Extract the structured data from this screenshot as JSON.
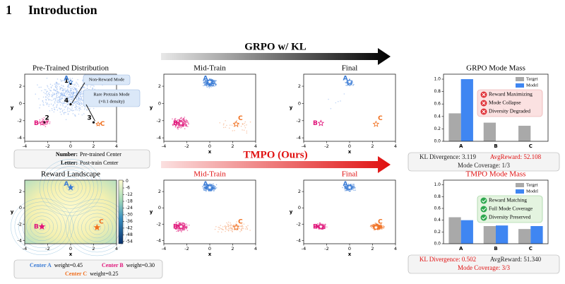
{
  "section": {
    "number": "1",
    "title": "Introduction"
  },
  "banners": {
    "grpo": "GRPO w/ KL",
    "tmpo": "TMPO (Ours)"
  },
  "modes": [
    "A",
    "B",
    "C"
  ],
  "scatter_axes": {
    "xlabel": "x",
    "ylabel": "y",
    "xlim": [
      -4,
      4
    ],
    "ylim": [
      -4.4,
      3.4
    ],
    "xticks": [
      -4,
      -2,
      0,
      2,
      4
    ],
    "yticks": [
      -4,
      -2,
      0,
      2
    ]
  },
  "pretrained": {
    "title": "Pre-Trained Distribution",
    "points": [
      "1",
      "2",
      "3",
      "4"
    ],
    "callouts": [
      "Non-Reward Mode",
      "Rare Pretrain Mode",
      "(×0.1 density)"
    ]
  },
  "legend_box": {
    "rows": [
      {
        "key": "Number:",
        "text": "Pre-trained Center"
      },
      {
        "key": "Letter:",
        "text": "Post-train Center"
      }
    ]
  },
  "reward": {
    "title": "Reward Landscape",
    "colorbar_ticks": [
      0,
      -6,
      -12,
      -18,
      -24,
      -30,
      -36,
      -42,
      -48,
      -54
    ],
    "colorbar_lim": [
      -56,
      1
    ]
  },
  "weights": [
    {
      "label": "Center A",
      "text": "weight=0.45"
    },
    {
      "label": "Center B",
      "text": "weight=0.30"
    },
    {
      "label": "Center C",
      "text": "weight=0.25"
    }
  ],
  "panel_titles": {
    "mid": "Mid-Train",
    "final": "Final"
  },
  "grpo_badges": [
    "Reward Maximizing",
    "Mode Collapse",
    "Diversity Degraded"
  ],
  "tmpo_badges": [
    "Reward Matching",
    "Full Mode Coverage",
    "Diversity Preserved"
  ],
  "grpo_stats": {
    "kl": "KL Divergence: 3.119",
    "reward": "AvgReward: 52.108",
    "coverage": "Mode Coverage: 1/3"
  },
  "tmpo_stats": {
    "kl": "KL Divergence: 0.502",
    "reward": "AvgReward: 51.340",
    "coverage": "Mode Coverage: 3/3"
  },
  "chart_data": [
    {
      "type": "bar",
      "title": "GRPO Mode Mass",
      "categories": [
        "A",
        "B",
        "C"
      ],
      "series": [
        {
          "name": "Target",
          "color": "#a9a9a9",
          "values": [
            0.45,
            0.3,
            0.25
          ]
        },
        {
          "name": "Model",
          "color": "#3f86f2",
          "values": [
            1.0,
            0.0,
            0.0
          ]
        }
      ],
      "ylim": [
        0,
        1.08
      ],
      "yticks": [
        {
          "value": 0,
          "label": "0.0"
        },
        {
          "value": 0.2,
          "label": "0.2"
        },
        {
          "value": 0.4,
          "label": "0.4"
        },
        {
          "value": 0.6,
          "label": "0.6"
        },
        {
          "value": 0.8,
          "label": "0.8"
        },
        {
          "value": 1,
          "label": "1.0"
        }
      ]
    },
    {
      "type": "bar",
      "title": "TMPO Mode Mass",
      "categories": [
        "A",
        "B",
        "C"
      ],
      "series": [
        {
          "name": "Target",
          "color": "#a9a9a9",
          "values": [
            0.45,
            0.3,
            0.25
          ]
        },
        {
          "name": "Model",
          "color": "#3f86f2",
          "values": [
            0.4,
            0.31,
            0.3
          ]
        }
      ],
      "ylim": [
        0,
        1.08
      ],
      "yticks": [
        {
          "value": 0,
          "label": "0.0"
        },
        {
          "value": 0.2,
          "label": "0.2"
        },
        {
          "value": 0.4,
          "label": "0.4"
        },
        {
          "value": 0.6,
          "label": "0.6"
        },
        {
          "value": 0.8,
          "label": "0.8"
        },
        {
          "value": 1,
          "label": "1.0"
        }
      ]
    }
  ]
}
